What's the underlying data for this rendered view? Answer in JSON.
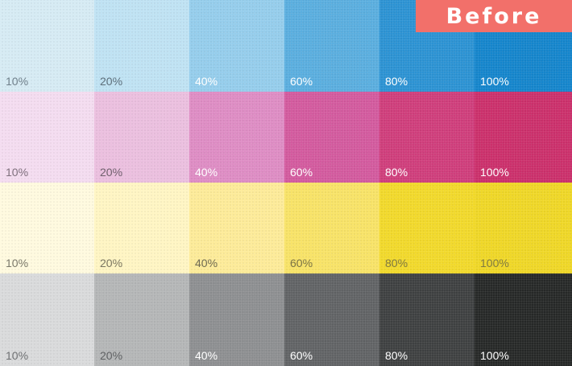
{
  "badge": {
    "label": "Before",
    "color": "#f2706a"
  },
  "rows": [
    {
      "ink": "cyan",
      "swatches": [
        {
          "label": "10%",
          "value": 10,
          "color": "#d6ebf4",
          "text_color": "#6f7f8a"
        },
        {
          "label": "20%",
          "value": 20,
          "color": "#bfe2f3",
          "text_color": "#5d6f7b"
        },
        {
          "label": "40%",
          "value": 40,
          "color": "#95cdec",
          "text_color": "#ffffff"
        },
        {
          "label": "60%",
          "value": 60,
          "color": "#5aaedf",
          "text_color": "#ffffff"
        },
        {
          "label": "80%",
          "value": 80,
          "color": "#2b92d3",
          "text_color": "#ffffff"
        },
        {
          "label": "100%",
          "value": 100,
          "color": "#1485cc",
          "text_color": "#ffffff"
        }
      ]
    },
    {
      "ink": "magenta",
      "swatches": [
        {
          "label": "10%",
          "value": 10,
          "color": "#f4dcf0",
          "text_color": "#7e6f7c"
        },
        {
          "label": "20%",
          "value": 20,
          "color": "#ebbfdf",
          "text_color": "#6f5f6c"
        },
        {
          "label": "40%",
          "value": 40,
          "color": "#de8cc4",
          "text_color": "#ffffff"
        },
        {
          "label": "60%",
          "value": 60,
          "color": "#d35a9e",
          "text_color": "#ffffff"
        },
        {
          "label": "80%",
          "value": 80,
          "color": "#cf3d7b",
          "text_color": "#ffffff"
        },
        {
          "label": "100%",
          "value": 100,
          "color": "#cb2f6b",
          "text_color": "#ffffff"
        }
      ]
    },
    {
      "ink": "yellow",
      "swatches": [
        {
          "label": "10%",
          "value": 10,
          "color": "#fffadf",
          "text_color": "#7a786a"
        },
        {
          "label": "20%",
          "value": 20,
          "color": "#fff5c3",
          "text_color": "#7a7660"
        },
        {
          "label": "40%",
          "value": 40,
          "color": "#fdeb98",
          "text_color": "#6f6a52"
        },
        {
          "label": "60%",
          "value": 60,
          "color": "#f8e367",
          "text_color": "#7a7345"
        },
        {
          "label": "80%",
          "value": 80,
          "color": "#f2d92a",
          "text_color": "#7f7840"
        },
        {
          "label": "100%",
          "value": 100,
          "color": "#efd726",
          "text_color": "#807a40"
        }
      ]
    },
    {
      "ink": "black",
      "swatches": [
        {
          "label": "10%",
          "value": 10,
          "color": "#d9dadb",
          "text_color": "#6e7072"
        },
        {
          "label": "20%",
          "value": 20,
          "color": "#b4b6b7",
          "text_color": "#5f6163"
        },
        {
          "label": "40%",
          "value": 40,
          "color": "#8d8f91",
          "text_color": "#ffffff"
        },
        {
          "label": "60%",
          "value": 60,
          "color": "#616365",
          "text_color": "#ffffff"
        },
        {
          "label": "80%",
          "value": 80,
          "color": "#3e4041",
          "text_color": "#ffffff"
        },
        {
          "label": "100%",
          "value": 100,
          "color": "#262827",
          "text_color": "#ffffff"
        }
      ]
    }
  ]
}
